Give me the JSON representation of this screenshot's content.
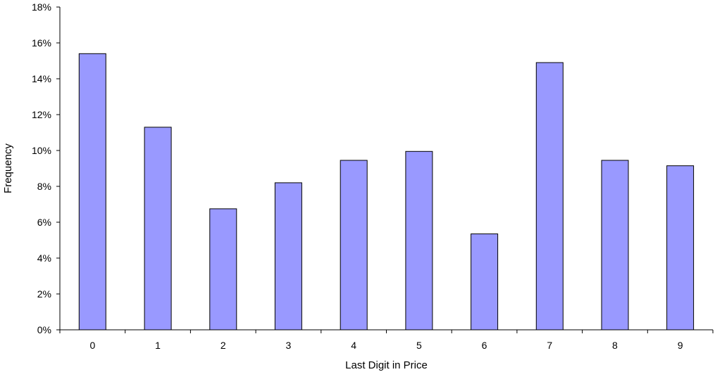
{
  "chart_data": {
    "type": "bar",
    "title": "",
    "xlabel": "Last Digit in Price",
    "ylabel": "Frequency",
    "categories": [
      "0",
      "1",
      "2",
      "3",
      "4",
      "5",
      "6",
      "7",
      "8",
      "9"
    ],
    "values": [
      15.4,
      11.3,
      6.75,
      8.2,
      9.45,
      9.95,
      5.35,
      14.9,
      9.45,
      9.15
    ],
    "ylim": [
      0,
      18
    ],
    "yticks": [
      0,
      2,
      4,
      6,
      8,
      10,
      12,
      14,
      16,
      18
    ],
    "ytick_labels": [
      "0%",
      "2%",
      "4%",
      "6%",
      "8%",
      "10%",
      "12%",
      "14%",
      "16%",
      "18%"
    ],
    "grid": false,
    "legend": "none",
    "colors": {
      "bar_fill": "#9999ff",
      "bar_stroke": "#000000",
      "axis": "#000000"
    }
  }
}
